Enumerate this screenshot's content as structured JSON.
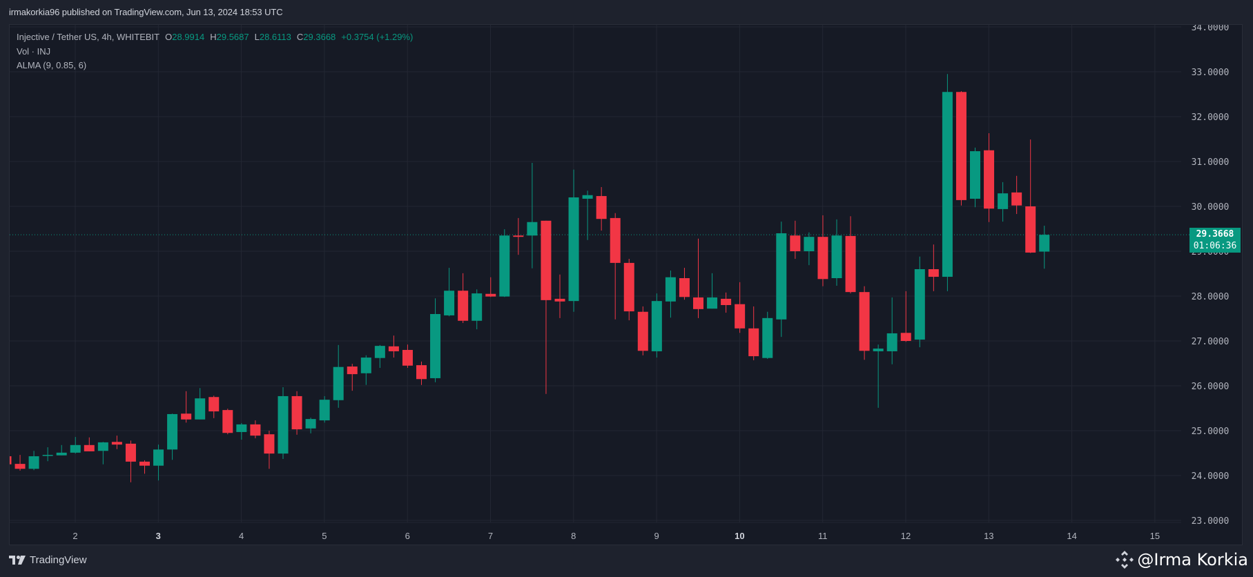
{
  "header": {
    "publisher_line": "irmakorkia96 published on TradingView.com, Jun 13, 2024 18:53 UTC"
  },
  "legend": {
    "symbol_line": "Injective / Tether US, 4h, WHITEBIT",
    "open_label": "O",
    "open_value": "28.9914",
    "high_label": "H",
    "high_value": "29.5687",
    "low_label": "L",
    "low_value": "28.6113",
    "close_label": "C",
    "close_value": "29.3668",
    "change": "+0.3754 (+1.29%)",
    "volume_line": "Vol · INJ",
    "indicator_line": "ALMA (9, 0.85, 6)"
  },
  "price_badge": {
    "price": "29.3668",
    "countdown": "01:06:36"
  },
  "footer": {
    "brand": "TradingView",
    "watermark": "@Irma Korkia"
  },
  "colors": {
    "background": "#1e222d",
    "chart_bg": "#161a25",
    "grid": "#232733",
    "up": "#089981",
    "down": "#f23645",
    "axis_text": "#b2b5be"
  },
  "chart_data": {
    "type": "candlestick",
    "title": "Injective / Tether US, 4h, WHITEBIT",
    "xlabel": "",
    "ylabel": "",
    "ylim": [
      23,
      34
    ],
    "y_ticks": [
      "23.0000",
      "24.0000",
      "25.0000",
      "26.0000",
      "27.0000",
      "28.0000",
      "29.0000",
      "30.0000",
      "31.0000",
      "32.0000",
      "33.0000",
      "34.0000"
    ],
    "x_ticks": [
      "2",
      "3",
      "4",
      "5",
      "6",
      "7",
      "8",
      "9",
      "10",
      "11",
      "12",
      "13",
      "14",
      "15"
    ],
    "x_ticks_bold": [
      "3",
      "10"
    ],
    "grid": true,
    "current_price": 29.3668,
    "candles": [
      {
        "o": 24.43,
        "h": 24.48,
        "l": 24.22,
        "c": 24.25
      },
      {
        "o": 24.26,
        "h": 24.46,
        "l": 24.11,
        "c": 24.15
      },
      {
        "o": 24.15,
        "h": 24.55,
        "l": 24.12,
        "c": 24.43
      },
      {
        "o": 24.44,
        "h": 24.63,
        "l": 24.32,
        "c": 24.46
      },
      {
        "o": 24.45,
        "h": 24.68,
        "l": 24.45,
        "c": 24.51
      },
      {
        "o": 24.51,
        "h": 24.86,
        "l": 24.49,
        "c": 24.68
      },
      {
        "o": 24.68,
        "h": 24.85,
        "l": 24.54,
        "c": 24.54
      },
      {
        "o": 24.55,
        "h": 24.75,
        "l": 24.25,
        "c": 24.74
      },
      {
        "o": 24.75,
        "h": 24.89,
        "l": 24.59,
        "c": 24.69
      },
      {
        "o": 24.71,
        "h": 24.78,
        "l": 23.85,
        "c": 24.31
      },
      {
        "o": 24.31,
        "h": 24.34,
        "l": 24.04,
        "c": 24.22
      },
      {
        "o": 24.22,
        "h": 24.69,
        "l": 23.89,
        "c": 24.58
      },
      {
        "o": 24.58,
        "h": 25.38,
        "l": 24.35,
        "c": 25.37
      },
      {
        "o": 25.38,
        "h": 25.88,
        "l": 25.18,
        "c": 25.25
      },
      {
        "o": 25.25,
        "h": 25.95,
        "l": 25.25,
        "c": 25.72
      },
      {
        "o": 25.75,
        "h": 25.78,
        "l": 25.28,
        "c": 25.43
      },
      {
        "o": 25.46,
        "h": 25.49,
        "l": 24.92,
        "c": 24.95
      },
      {
        "o": 24.97,
        "h": 25.17,
        "l": 24.8,
        "c": 25.14
      },
      {
        "o": 25.14,
        "h": 25.23,
        "l": 24.83,
        "c": 24.89
      },
      {
        "o": 24.92,
        "h": 25.0,
        "l": 24.15,
        "c": 24.49
      },
      {
        "o": 24.49,
        "h": 25.97,
        "l": 24.37,
        "c": 25.77
      },
      {
        "o": 25.77,
        "h": 25.88,
        "l": 24.91,
        "c": 25.03
      },
      {
        "o": 25.05,
        "h": 25.29,
        "l": 24.94,
        "c": 25.26
      },
      {
        "o": 25.23,
        "h": 25.77,
        "l": 25.18,
        "c": 25.69
      },
      {
        "o": 25.68,
        "h": 26.91,
        "l": 25.51,
        "c": 26.42
      },
      {
        "o": 26.43,
        "h": 26.49,
        "l": 25.89,
        "c": 26.26
      },
      {
        "o": 26.28,
        "h": 26.68,
        "l": 26.02,
        "c": 26.63
      },
      {
        "o": 26.62,
        "h": 26.91,
        "l": 26.4,
        "c": 26.89
      },
      {
        "o": 26.88,
        "h": 27.12,
        "l": 26.63,
        "c": 26.77
      },
      {
        "o": 26.8,
        "h": 26.92,
        "l": 26.4,
        "c": 26.45
      },
      {
        "o": 26.46,
        "h": 26.54,
        "l": 26.02,
        "c": 26.15
      },
      {
        "o": 26.17,
        "h": 27.95,
        "l": 26.08,
        "c": 27.6
      },
      {
        "o": 27.57,
        "h": 28.63,
        "l": 27.55,
        "c": 28.12
      },
      {
        "o": 28.12,
        "h": 28.51,
        "l": 27.4,
        "c": 27.45
      },
      {
        "o": 27.45,
        "h": 28.15,
        "l": 27.26,
        "c": 28.06
      },
      {
        "o": 28.05,
        "h": 28.42,
        "l": 27.98,
        "c": 27.99
      },
      {
        "o": 27.99,
        "h": 29.49,
        "l": 27.98,
        "c": 29.35
      },
      {
        "o": 29.35,
        "h": 29.74,
        "l": 28.92,
        "c": 29.32
      },
      {
        "o": 29.35,
        "h": 30.97,
        "l": 28.62,
        "c": 29.65
      },
      {
        "o": 29.68,
        "h": 29.68,
        "l": 25.82,
        "c": 27.91
      },
      {
        "o": 27.94,
        "h": 28.48,
        "l": 27.51,
        "c": 27.88
      },
      {
        "o": 27.89,
        "h": 30.82,
        "l": 27.65,
        "c": 30.2
      },
      {
        "o": 30.17,
        "h": 30.35,
        "l": 29.25,
        "c": 30.25
      },
      {
        "o": 30.23,
        "h": 30.43,
        "l": 29.46,
        "c": 29.72
      },
      {
        "o": 29.74,
        "h": 29.85,
        "l": 27.48,
        "c": 28.74
      },
      {
        "o": 28.74,
        "h": 28.83,
        "l": 27.46,
        "c": 27.66
      },
      {
        "o": 27.65,
        "h": 27.77,
        "l": 26.68,
        "c": 26.78
      },
      {
        "o": 26.77,
        "h": 28.06,
        "l": 26.63,
        "c": 27.89
      },
      {
        "o": 27.88,
        "h": 28.57,
        "l": 27.52,
        "c": 28.42
      },
      {
        "o": 28.4,
        "h": 28.63,
        "l": 27.92,
        "c": 27.98
      },
      {
        "o": 27.97,
        "h": 29.28,
        "l": 27.51,
        "c": 27.71
      },
      {
        "o": 27.72,
        "h": 28.51,
        "l": 27.72,
        "c": 27.97
      },
      {
        "o": 27.94,
        "h": 28.08,
        "l": 27.63,
        "c": 27.8
      },
      {
        "o": 27.82,
        "h": 28.31,
        "l": 27.18,
        "c": 27.28
      },
      {
        "o": 27.28,
        "h": 27.77,
        "l": 26.57,
        "c": 26.66
      },
      {
        "o": 26.62,
        "h": 27.65,
        "l": 26.6,
        "c": 27.51
      },
      {
        "o": 27.48,
        "h": 29.66,
        "l": 27.09,
        "c": 29.4
      },
      {
        "o": 29.35,
        "h": 29.68,
        "l": 28.83,
        "c": 29.0
      },
      {
        "o": 29.0,
        "h": 29.42,
        "l": 28.69,
        "c": 29.32
      },
      {
        "o": 29.32,
        "h": 29.8,
        "l": 28.22,
        "c": 28.38
      },
      {
        "o": 28.4,
        "h": 29.71,
        "l": 28.23,
        "c": 29.35
      },
      {
        "o": 29.34,
        "h": 29.78,
        "l": 28.06,
        "c": 28.09
      },
      {
        "o": 28.09,
        "h": 28.22,
        "l": 26.58,
        "c": 26.78
      },
      {
        "o": 26.77,
        "h": 26.92,
        "l": 25.51,
        "c": 26.83
      },
      {
        "o": 26.77,
        "h": 27.97,
        "l": 26.48,
        "c": 27.17
      },
      {
        "o": 27.18,
        "h": 28.11,
        "l": 26.98,
        "c": 27.0
      },
      {
        "o": 27.03,
        "h": 28.88,
        "l": 26.86,
        "c": 28.6
      },
      {
        "o": 28.6,
        "h": 29.15,
        "l": 28.11,
        "c": 28.43
      },
      {
        "o": 28.43,
        "h": 32.95,
        "l": 28.11,
        "c": 32.55
      },
      {
        "o": 32.55,
        "h": 32.57,
        "l": 30.02,
        "c": 30.14
      },
      {
        "o": 30.17,
        "h": 31.31,
        "l": 29.98,
        "c": 31.23
      },
      {
        "o": 31.25,
        "h": 31.63,
        "l": 29.65,
        "c": 29.95
      },
      {
        "o": 29.94,
        "h": 30.54,
        "l": 29.66,
        "c": 30.29
      },
      {
        "o": 30.31,
        "h": 30.68,
        "l": 29.83,
        "c": 30.02
      },
      {
        "o": 30.0,
        "h": 31.49,
        "l": 28.96,
        "c": 28.97
      },
      {
        "o": 28.9914,
        "h": 29.5687,
        "l": 28.6113,
        "c": 29.3668
      }
    ]
  }
}
